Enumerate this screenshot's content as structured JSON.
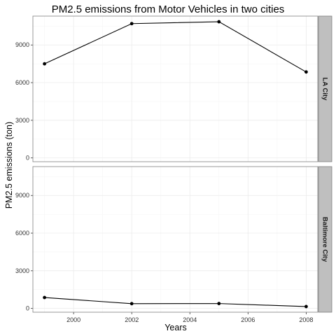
{
  "chart_data": {
    "type": "line",
    "title": "PM2.5 emissions from Motor Vehicles in two cities",
    "xlabel": "Years",
    "ylabel": "PM2.5 emissions (ton)",
    "xlim": [
      1998.6,
      2008.4
    ],
    "ylim": [
      -300,
      11300
    ],
    "x_ticks": [
      2000,
      2002,
      2004,
      2006,
      2008
    ],
    "y_ticks": [
      0,
      3000,
      6000,
      9000
    ],
    "grid": true,
    "facet": "rows",
    "panels": [
      {
        "label": "LA City",
        "x": [
          1999,
          2002,
          2005,
          2008
        ],
        "y": [
          7500,
          10700,
          10850,
          6850
        ]
      },
      {
        "label": "Baltimore City",
        "x": [
          1999,
          2002,
          2005,
          2008
        ],
        "y": [
          870,
          380,
          390,
          150
        ]
      }
    ],
    "colors": {
      "line": "#000000",
      "point": "#000000",
      "strip": "#bfbfbf",
      "grid_major": "#ebebeb",
      "grid_minor": "#f5f5f5",
      "panel_border": "#7f7f7f"
    }
  }
}
